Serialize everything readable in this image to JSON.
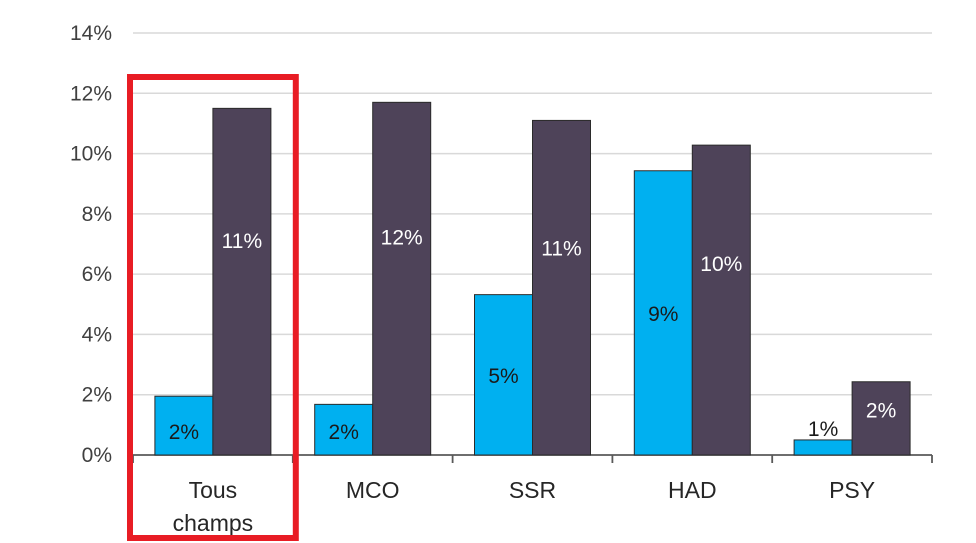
{
  "chart_data": {
    "type": "bar",
    "title": "",
    "xlabel": "",
    "ylabel": "",
    "categories": [
      [
        "Tous",
        "champs"
      ],
      [
        "MCO"
      ],
      [
        "SSR"
      ],
      [
        "HAD"
      ],
      [
        "PSY"
      ]
    ],
    "series": [
      {
        "color": "#00B0F0",
        "values": [
          0.0195,
          0.0168,
          0.0532,
          0.0943,
          0.005
        ],
        "labels": [
          "2%",
          "2%",
          "5%",
          "9%",
          "1%"
        ]
      },
      {
        "color": "#4E4359",
        "values": [
          0.115,
          0.117,
          0.111,
          0.1028,
          0.0243
        ],
        "labels": [
          "11%",
          "12%",
          "11%",
          "10%",
          "2%"
        ]
      }
    ],
    "ylim": [
      0,
      0.14
    ],
    "yticks": [
      0,
      0.02,
      0.04,
      0.06,
      0.08,
      0.1,
      0.12,
      0.14
    ],
    "ytick_labels": [
      "0%",
      "2%",
      "4%",
      "6%",
      "8%",
      "10%",
      "12%",
      "14%"
    ],
    "grid": true,
    "legend": "none",
    "highlight": {
      "category_index": 0,
      "color": "#E81C24"
    }
  }
}
